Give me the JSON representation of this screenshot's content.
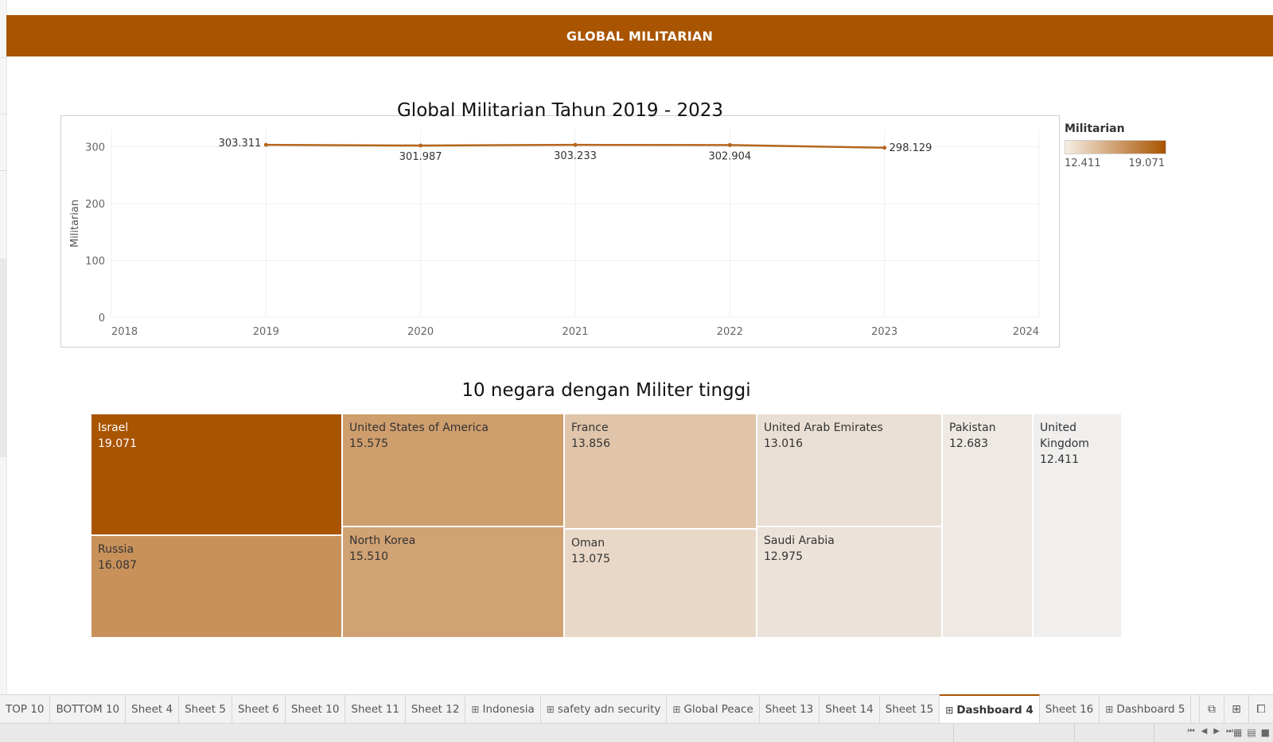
{
  "banner": {
    "title": "GLOBAL MILITARIAN"
  },
  "line_chart": {
    "title": "Global Militarian Tahun 2019 - 2023",
    "ylabel": "Militarian",
    "x_ticks": [
      "2018",
      "2019",
      "2020",
      "2021",
      "2022",
      "2023",
      "2024"
    ],
    "y_ticks": [
      "0",
      "100",
      "200",
      "300"
    ],
    "point_labels": [
      "303.311",
      "301.987",
      "303.233",
      "302.904",
      "298.129"
    ]
  },
  "legend": {
    "title": "Militarian",
    "min_label": "12.411",
    "max_label": "19.071"
  },
  "treemap": {
    "title": "10 negara dengan Militer tinggi",
    "cells": [
      {
        "name": "Israel",
        "value": "19.071"
      },
      {
        "name": "Russia",
        "value": "16.087"
      },
      {
        "name": "United States of America",
        "value": "15.575"
      },
      {
        "name": "North Korea",
        "value": "15.510"
      },
      {
        "name": "France",
        "value": "13.856"
      },
      {
        "name": "Oman",
        "value": "13.075"
      },
      {
        "name": "United Arab Emirates",
        "value": "13.016"
      },
      {
        "name": "Saudi Arabia",
        "value": "12.975"
      },
      {
        "name": "Pakistan",
        "value": "12.683"
      },
      {
        "name": "United Kingdom",
        "value": "12.411"
      }
    ]
  },
  "chart_data": [
    {
      "type": "line",
      "title": "Global Militarian Tahun 2019 - 2023",
      "xlabel": "",
      "ylabel": "Militarian",
      "x": [
        2019,
        2020,
        2021,
        2022,
        2023
      ],
      "xlim": [
        2018,
        2024
      ],
      "ylim": [
        0,
        330
      ],
      "series": [
        {
          "values": [
            303.311,
            301.987,
            303.233,
            302.904,
            298.129
          ]
        }
      ],
      "color": "#b5651d",
      "grid": true,
      "legend": "right"
    },
    {
      "type": "treemap",
      "title": "10 negara dengan Militer tinggi",
      "categories": [
        "Israel",
        "Russia",
        "United States of America",
        "North Korea",
        "France",
        "Oman",
        "United Arab Emirates",
        "Saudi Arabia",
        "Pakistan",
        "United Kingdom"
      ],
      "values": [
        19.071,
        16.087,
        15.575,
        15.51,
        13.856,
        13.075,
        13.016,
        12.975,
        12.683,
        12.411
      ],
      "color_range": [
        "#f6ede3",
        "#a95400"
      ]
    }
  ],
  "tabs": [
    {
      "label": "TOP 10",
      "icon": ""
    },
    {
      "label": "BOTTOM 10",
      "icon": ""
    },
    {
      "label": "Sheet 4",
      "icon": ""
    },
    {
      "label": "Sheet 5",
      "icon": ""
    },
    {
      "label": "Sheet 6",
      "icon": ""
    },
    {
      "label": "Sheet 10",
      "icon": ""
    },
    {
      "label": "Sheet 11",
      "icon": ""
    },
    {
      "label": "Sheet 12",
      "icon": ""
    },
    {
      "label": "Indonesia",
      "icon": "grid"
    },
    {
      "label": "safety adn security",
      "icon": "grid"
    },
    {
      "label": "Global Peace",
      "icon": "grid"
    },
    {
      "label": "Sheet 13",
      "icon": ""
    },
    {
      "label": "Sheet 14",
      "icon": ""
    },
    {
      "label": "Sheet 15",
      "icon": ""
    },
    {
      "label": "Dashboard 4",
      "icon": "grid",
      "active": true
    },
    {
      "label": "Sheet 16",
      "icon": ""
    },
    {
      "label": "Dashboard 5",
      "icon": "grid"
    }
  ],
  "tab_actions": [
    "new-worksheet-icon",
    "new-dashboard-icon",
    "new-story-icon"
  ]
}
